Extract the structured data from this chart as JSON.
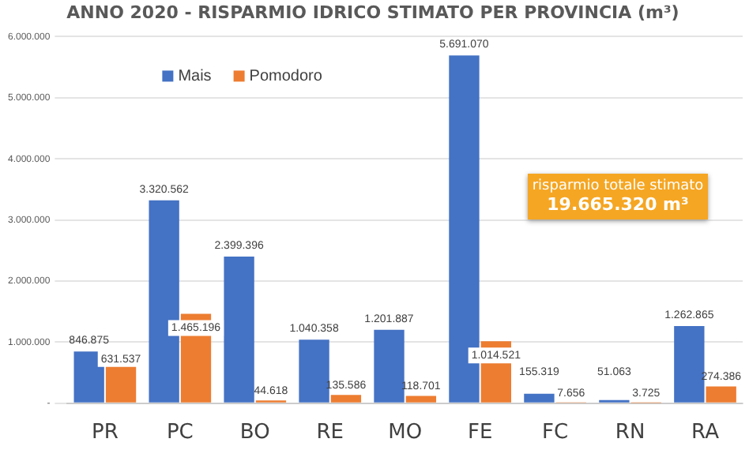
{
  "chart_data": {
    "type": "bar",
    "title": "ANNO 2020 - RISPARMIO IDRICO STIMATO PER PROVINCIA (m³)",
    "categories": [
      "PR",
      "PC",
      "BO",
      "RE",
      "MO",
      "FE",
      "FC",
      "RN",
      "RA"
    ],
    "series": [
      {
        "name": "Mais",
        "color": "#4472c4",
        "values": [
          846875,
          3320562,
          2399396,
          1040358,
          1201887,
          5691070,
          155319,
          51063,
          1262865
        ],
        "value_labels": [
          "846.875",
          "3.320.562",
          "2.399.396",
          "1.040.358",
          "1.201.887",
          "5.691.070",
          "155.319",
          "51.063",
          "1.262.865"
        ]
      },
      {
        "name": "Pomodoro",
        "color": "#ed7d31",
        "values": [
          631537,
          1465196,
          44618,
          135586,
          118701,
          1014521,
          7656,
          3725,
          274386
        ],
        "value_labels": [
          "631.537",
          "1.465.196",
          "44.618",
          "135.586",
          "118.701",
          "1.014.521",
          "7.656",
          "3.725",
          "274.386"
        ]
      }
    ],
    "ylim": [
      0,
      6000000
    ],
    "yticks": [
      {
        "value": 0,
        "label": "-"
      },
      {
        "value": 1000000,
        "label": "1.000.000"
      },
      {
        "value": 2000000,
        "label": "2.000.000"
      },
      {
        "value": 3000000,
        "label": "3.000.000"
      },
      {
        "value": 4000000,
        "label": "4.000.000"
      },
      {
        "value": 5000000,
        "label": "5.000.000"
      },
      {
        "value": 6000000,
        "label": "6.000.000"
      }
    ],
    "grid": "y",
    "legend": "top left",
    "annotations": [
      "risparmio totale stimato",
      "19.665.320 m³"
    ]
  }
}
